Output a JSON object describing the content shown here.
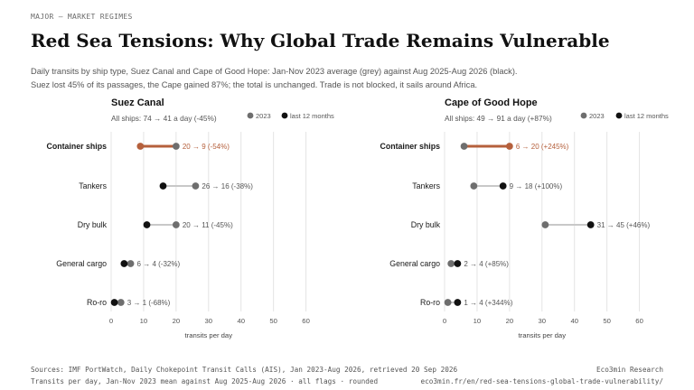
{
  "header": {
    "kicker": "MAJOR – MARKET REGIMES",
    "title": "Red Sea Tensions: Why Global Trade Remains Vulnerable",
    "subtitle_line1": "Daily transits by ship type, Suez Canal and Cape of Good Hope: Jan-Nov 2023 average (grey) against Aug 2025-Aug 2026 (black).",
    "subtitle_line2": "Suez lost 45% of its passages, the Cape gained 87%; the total is unchanged. Trade is not blocked, it sails around Africa."
  },
  "footer": {
    "left1": "Sources: IMF PortWatch, Daily Chokepoint Transit Calls (AIS), Jan 2023-Aug 2026, retrieved 20 Sep 2026",
    "left2": "Transits per day, Jan-Nov 2023 mean against Aug 2025-Aug 2026 · all flags · rounded",
    "right1": "Eco3min Research",
    "right2": "eco3min.fr/en/red-sea-tensions-global-trade-vulnerability/"
  },
  "colors": {
    "baseline": "#6e6e6e",
    "recent": "#111111",
    "highlight": "#b5603c",
    "connector": "#c8c8c8",
    "grid": "#e4e4e4"
  },
  "chart_data": [
    {
      "type": "dumbbell",
      "title": "Suez Canal",
      "subtitle": "All ships: 74 → 41 a day (-45%)",
      "xlabel": "transits per day",
      "xlim": [
        0,
        60
      ],
      "xticks": [
        "0",
        "10",
        "20",
        "30",
        "40",
        "50",
        "60"
      ],
      "legend": {
        "baseline": "2023",
        "recent": "last 12 months",
        "position": "top-right"
      },
      "grid": true,
      "categories": [
        "Container ships",
        "Tankers",
        "Dry bulk",
        "General cargo",
        "Ro-ro"
      ],
      "highlight": "Container ships",
      "series": [
        {
          "name": "2023",
          "values": [
            20,
            26,
            20,
            6,
            3
          ]
        },
        {
          "name": "last 12 months",
          "values": [
            9,
            16,
            11,
            4,
            1
          ]
        }
      ],
      "labels": [
        "20 → 9 (-54%)",
        "26 → 16 (-38%)",
        "20 → 11 (-45%)",
        "6 → 4 (-32%)",
        "3 → 1 (-68%)"
      ]
    },
    {
      "type": "dumbbell",
      "title": "Cape of Good Hope",
      "subtitle": "All ships: 49 → 91 a day (+87%)",
      "xlabel": "transits per day",
      "xlim": [
        0,
        60
      ],
      "xticks": [
        "0",
        "10",
        "20",
        "30",
        "40",
        "50",
        "60"
      ],
      "legend": {
        "baseline": "2023",
        "recent": "last 12 months",
        "position": "top-right"
      },
      "grid": true,
      "categories": [
        "Container ships",
        "Tankers",
        "Dry bulk",
        "General cargo",
        "Ro-ro"
      ],
      "highlight": "Container ships",
      "series": [
        {
          "name": "2023",
          "values": [
            6,
            9,
            31,
            2,
            1
          ]
        },
        {
          "name": "last 12 months",
          "values": [
            20,
            18,
            45,
            4,
            4
          ]
        }
      ],
      "labels": [
        "6 → 20 (+245%)",
        "9 → 18 (+100%)",
        "31 → 45 (+46%)",
        "2 → 4 (+85%)",
        "1 → 4 (+344%)"
      ]
    }
  ]
}
